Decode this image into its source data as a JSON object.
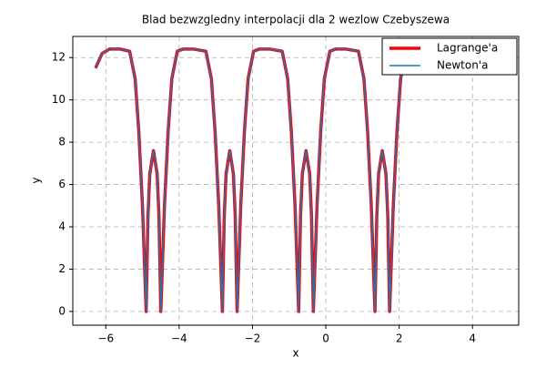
{
  "chart_data": {
    "type": "line",
    "title": "Blad bezwzgledny interpolacji dla 2 wezlow Czebyszewa",
    "x_label": "x",
    "y_label": "y",
    "x": [
      -6.28,
      -6.1,
      -5.9,
      -5.6,
      -5.35,
      -5.2,
      -5.1,
      -5.0,
      -4.9,
      -4.85,
      -4.8,
      -4.7,
      -4.6,
      -4.55,
      -4.5,
      -4.4,
      -4.3,
      -4.2,
      -4.05,
      -3.9,
      -3.6,
      -3.27,
      -3.12,
      -3.02,
      -2.92,
      -2.82,
      -2.77,
      -2.72,
      -2.62,
      -2.52,
      -2.47,
      -2.42,
      -2.32,
      -2.22,
      -2.12,
      -1.97,
      -1.82,
      -1.52,
      -1.19,
      -1.04,
      -0.94,
      -0.84,
      -0.74,
      -0.69,
      -0.64,
      -0.54,
      -0.44,
      -0.39,
      -0.34,
      -0.24,
      -0.14,
      -0.04,
      0.11,
      0.26,
      0.56,
      0.89,
      1.04,
      1.14,
      1.24,
      1.34,
      1.39,
      1.44,
      1.54,
      1.64,
      1.69,
      1.74,
      1.84,
      1.94,
      2.04,
      2.19
    ],
    "series": [
      {
        "name": "Lagrange'a",
        "color": "#ff0000",
        "width": 3.5,
        "values": [
          11.5,
          12.2,
          12.4,
          12.4,
          12.3,
          11,
          8.5,
          5,
          0,
          4.5,
          6.5,
          7.6,
          6.5,
          4.5,
          0,
          5,
          8.5,
          11,
          12.3,
          12.4,
          12.4,
          12.3,
          11,
          8.5,
          5,
          0,
          4.5,
          6.5,
          7.6,
          6.5,
          4.5,
          0,
          5,
          8.5,
          11,
          12.3,
          12.4,
          12.4,
          12.3,
          11,
          8.5,
          5,
          0,
          4.5,
          6.5,
          7.6,
          6.5,
          4.5,
          0,
          5,
          8.5,
          11,
          12.3,
          12.4,
          12.4,
          12.3,
          11,
          8.5,
          5,
          0,
          4.5,
          6.5,
          7.6,
          6.5,
          4.5,
          0,
          5,
          8.5,
          11,
          12.3
        ]
      },
      {
        "name": "Newton'a",
        "color": "#1f77b4",
        "width": 1.5,
        "values": [
          11.5,
          12.2,
          12.4,
          12.4,
          12.3,
          11,
          8.5,
          5,
          0,
          4.5,
          6.5,
          7.6,
          6.5,
          4.5,
          0,
          5,
          8.5,
          11,
          12.3,
          12.4,
          12.4,
          12.3,
          11,
          8.5,
          5,
          0,
          4.5,
          6.5,
          7.6,
          6.5,
          4.5,
          0,
          5,
          8.5,
          11,
          12.3,
          12.4,
          12.4,
          12.3,
          11,
          8.5,
          5,
          0,
          4.5,
          6.5,
          7.6,
          6.5,
          4.5,
          0,
          5,
          8.5,
          11,
          12.3,
          12.4,
          12.4,
          12.3,
          11,
          8.5,
          5,
          0,
          4.5,
          6.5,
          7.6,
          6.5,
          4.5,
          0,
          5,
          8.5,
          11,
          12.3
        ]
      }
    ],
    "xlim": [
      -6.9,
      5.26
    ],
    "ylim": [
      -0.65,
      13.0
    ],
    "xticks": [
      {
        "value": -6,
        "label": "−6"
      },
      {
        "value": -4,
        "label": "−4"
      },
      {
        "value": -2,
        "label": "−2"
      },
      0,
      2,
      4
    ],
    "yticks": [
      0,
      2,
      4,
      6,
      8,
      10,
      12
    ],
    "grid": true,
    "legend": "upper right"
  }
}
